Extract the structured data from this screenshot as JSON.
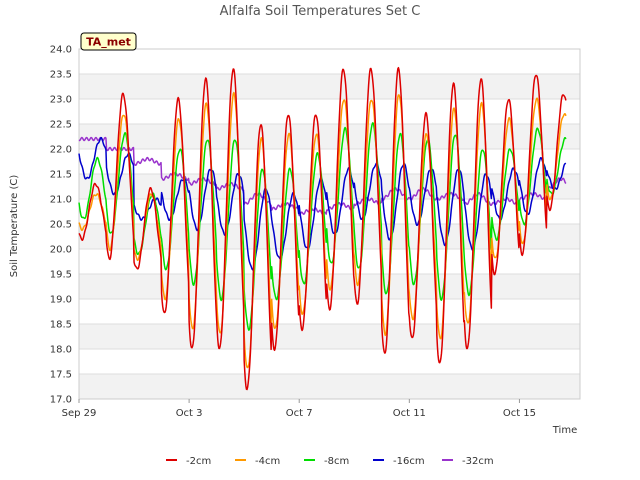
{
  "chart_data": {
    "type": "line",
    "title": "Alfalfa Soil Temperatures Set C",
    "xlabel": "Time",
    "ylabel": "Soil Temperature (C)",
    "badge": "TA_met",
    "ylim": [
      17.0,
      24.0
    ],
    "yticks": [
      "17.0",
      "17.5",
      "18.0",
      "18.5",
      "19.0",
      "19.5",
      "20.0",
      "20.5",
      "21.0",
      "21.5",
      "22.0",
      "22.5",
      "23.0",
      "23.5",
      "24.0"
    ],
    "xlim_days": [
      0,
      18.2
    ],
    "x_ticks": [
      {
        "day": 0,
        "label": "Sep 29"
      },
      {
        "day": 4,
        "label": "Oct 3"
      },
      {
        "day": 8,
        "label": "Oct 7"
      },
      {
        "day": 12,
        "label": "Oct 11"
      },
      {
        "day": 16,
        "label": "Oct 15"
      }
    ],
    "grid": true,
    "legend": "bottom",
    "series": [
      {
        "name": "-2cm",
        "color": "#dd0000",
        "peak_phase": 0.604,
        "days": [
          {
            "day": 0,
            "max": 21.3,
            "min": 20.2
          },
          {
            "day": 1,
            "max": 23.1,
            "min": 19.8
          },
          {
            "day": 2,
            "max": 21.2,
            "min": 19.6
          },
          {
            "day": 3,
            "max": 23.0,
            "min": 18.7
          },
          {
            "day": 4,
            "max": 23.4,
            "min": 18.0
          },
          {
            "day": 5,
            "max": 23.6,
            "min": 18.0
          },
          {
            "day": 6,
            "max": 22.5,
            "min": 17.2
          },
          {
            "day": 7,
            "max": 22.7,
            "min": 18.0
          },
          {
            "day": 8,
            "max": 22.7,
            "min": 18.4
          },
          {
            "day": 9,
            "max": 23.6,
            "min": 18.8
          },
          {
            "day": 10,
            "max": 23.6,
            "min": 18.9
          },
          {
            "day": 11,
            "max": 23.6,
            "min": 17.9
          },
          {
            "day": 12,
            "max": 22.7,
            "min": 18.2
          },
          {
            "day": 13,
            "max": 23.3,
            "min": 17.7
          },
          {
            "day": 14,
            "max": 23.4,
            "min": 18.0
          },
          {
            "day": 15,
            "max": 23.0,
            "min": 19.5
          },
          {
            "day": 16,
            "max": 23.5,
            "min": 19.9
          },
          {
            "day": 17,
            "max": 23.1,
            "min": 20.8
          }
        ]
      },
      {
        "name": "-4cm",
        "color": "#ff9900",
        "peak_phase": 0.625,
        "days": [
          {
            "day": 0,
            "max": 21.1,
            "min": 20.4
          },
          {
            "day": 1,
            "max": 22.7,
            "min": 20.0
          },
          {
            "day": 2,
            "max": 21.1,
            "min": 19.8
          },
          {
            "day": 3,
            "max": 22.6,
            "min": 19.0
          },
          {
            "day": 4,
            "max": 22.9,
            "min": 18.4
          },
          {
            "day": 5,
            "max": 23.1,
            "min": 18.3
          },
          {
            "day": 6,
            "max": 22.2,
            "min": 17.6
          },
          {
            "day": 7,
            "max": 22.3,
            "min": 18.4
          },
          {
            "day": 8,
            "max": 22.3,
            "min": 18.7
          },
          {
            "day": 9,
            "max": 23.0,
            "min": 19.2
          },
          {
            "day": 10,
            "max": 23.0,
            "min": 19.3
          },
          {
            "day": 11,
            "max": 23.1,
            "min": 18.3
          },
          {
            "day": 12,
            "max": 22.3,
            "min": 18.6
          },
          {
            "day": 13,
            "max": 22.8,
            "min": 18.2
          },
          {
            "day": 14,
            "max": 22.9,
            "min": 18.5
          },
          {
            "day": 15,
            "max": 22.6,
            "min": 19.8
          },
          {
            "day": 16,
            "max": 23.0,
            "min": 20.1
          },
          {
            "day": 17,
            "max": 22.7,
            "min": 21.0
          }
        ]
      },
      {
        "name": "-8cm",
        "color": "#00dd00",
        "peak_phase": 0.667,
        "days": [
          {
            "day": 0,
            "max": 21.8,
            "min": 20.6
          },
          {
            "day": 1,
            "max": 22.3,
            "min": 20.3
          },
          {
            "day": 2,
            "max": 21.1,
            "min": 19.9
          },
          {
            "day": 3,
            "max": 22.0,
            "min": 19.6
          },
          {
            "day": 4,
            "max": 22.2,
            "min": 19.3
          },
          {
            "day": 5,
            "max": 22.2,
            "min": 19.0
          },
          {
            "day": 6,
            "max": 21.6,
            "min": 18.4
          },
          {
            "day": 7,
            "max": 21.6,
            "min": 19.0
          },
          {
            "day": 8,
            "max": 21.9,
            "min": 19.3
          },
          {
            "day": 9,
            "max": 22.4,
            "min": 19.7
          },
          {
            "day": 10,
            "max": 22.5,
            "min": 19.6
          },
          {
            "day": 11,
            "max": 22.3,
            "min": 19.1
          },
          {
            "day": 12,
            "max": 22.2,
            "min": 19.3
          },
          {
            "day": 13,
            "max": 22.3,
            "min": 19.0
          },
          {
            "day": 14,
            "max": 22.0,
            "min": 19.1
          },
          {
            "day": 15,
            "max": 22.0,
            "min": 20.2
          },
          {
            "day": 16,
            "max": 22.4,
            "min": 20.5
          },
          {
            "day": 17,
            "max": 22.2,
            "min": 21.1
          }
        ]
      },
      {
        "name": "-16cm",
        "color": "#0000cc",
        "peak_phase": 0.792,
        "days": [
          {
            "day": 0,
            "max": 22.2,
            "min": 21.4
          },
          {
            "day": 1,
            "max": 21.9,
            "min": 21.1
          },
          {
            "day": 2,
            "max": 21.0,
            "min": 20.6
          },
          {
            "day": 3,
            "max": 21.4,
            "min": 20.6
          },
          {
            "day": 4,
            "max": 21.6,
            "min": 20.4
          },
          {
            "day": 5,
            "max": 21.5,
            "min": 20.3
          },
          {
            "day": 6,
            "max": 21.2,
            "min": 19.6
          },
          {
            "day": 7,
            "max": 21.1,
            "min": 19.8
          },
          {
            "day": 8,
            "max": 21.4,
            "min": 20.0
          },
          {
            "day": 9,
            "max": 21.6,
            "min": 20.3
          },
          {
            "day": 10,
            "max": 21.7,
            "min": 20.6
          },
          {
            "day": 11,
            "max": 21.7,
            "min": 20.2
          },
          {
            "day": 12,
            "max": 21.6,
            "min": 20.5
          },
          {
            "day": 13,
            "max": 21.6,
            "min": 20.1
          },
          {
            "day": 14,
            "max": 21.5,
            "min": 20.0
          },
          {
            "day": 15,
            "max": 21.6,
            "min": 20.6
          },
          {
            "day": 16,
            "max": 21.8,
            "min": 20.7
          },
          {
            "day": 17,
            "max": 21.8,
            "min": 21.2
          }
        ]
      },
      {
        "name": "-32cm",
        "color": "#9933cc",
        "peak_phase": 0.5,
        "days": [
          {
            "day": 0,
            "max": 22.2,
            "min": 22.2
          },
          {
            "day": 1,
            "max": 22.0,
            "min": 22.0
          },
          {
            "day": 2,
            "max": 21.8,
            "min": 21.7
          },
          {
            "day": 3,
            "max": 21.5,
            "min": 21.4
          },
          {
            "day": 4,
            "max": 21.4,
            "min": 21.3
          },
          {
            "day": 5,
            "max": 21.3,
            "min": 21.2
          },
          {
            "day": 6,
            "max": 21.1,
            "min": 20.9
          },
          {
            "day": 7,
            "max": 20.9,
            "min": 20.8
          },
          {
            "day": 8,
            "max": 20.8,
            "min": 20.7
          },
          {
            "day": 9,
            "max": 20.9,
            "min": 20.8
          },
          {
            "day": 10,
            "max": 21.0,
            "min": 20.9
          },
          {
            "day": 11,
            "max": 21.2,
            "min": 21.0
          },
          {
            "day": 12,
            "max": 21.2,
            "min": 21.0
          },
          {
            "day": 13,
            "max": 21.1,
            "min": 21.0
          },
          {
            "day": 14,
            "max": 21.1,
            "min": 20.9
          },
          {
            "day": 15,
            "max": 21.0,
            "min": 20.9
          },
          {
            "day": 16,
            "max": 21.1,
            "min": 21.0
          },
          {
            "day": 17,
            "max": 21.4,
            "min": 21.2
          }
        ]
      }
    ]
  }
}
